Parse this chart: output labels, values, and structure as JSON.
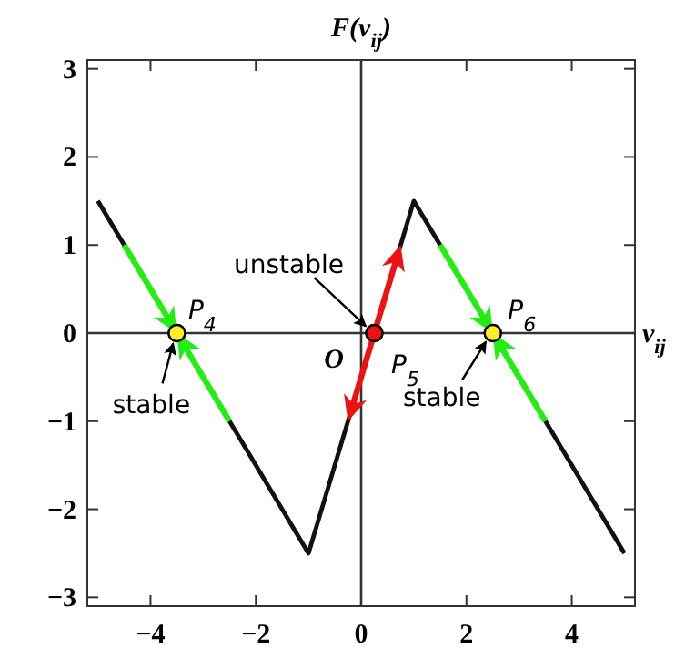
{
  "chart_data": {
    "type": "line",
    "title": "F(v$_{ij}$)",
    "xlim": [
      -5.2,
      5.2
    ],
    "ylim": [
      -3.1,
      3.1
    ],
    "xticks": [
      -4,
      -2,
      0,
      2,
      4
    ],
    "yticks": [
      -3,
      -2,
      -1,
      0,
      1,
      2,
      3
    ],
    "grid": false,
    "ref_lines": [
      {
        "axis": "x",
        "value": 0,
        "color": "#333333"
      },
      {
        "axis": "y",
        "value": 0,
        "color": "#333333",
        "label": "v$_{ij}$"
      }
    ],
    "series": [
      {
        "color": "#111111",
        "x": [
          -5,
          -1,
          1,
          5
        ],
        "values": [
          1.5,
          -2.5,
          1.5,
          -2.5
        ]
      },
      {
        "type": "scatter",
        "color": "#ffee22",
        "marker": "circle",
        "x": [
          -3.5,
          2.5
        ],
        "values": [
          0,
          0
        ]
      },
      {
        "type": "scatter",
        "color": "#ee1111",
        "marker": "circle",
        "x": [
          0.25
        ],
        "values": [
          0
        ]
      }
    ],
    "annotations": [
      {
        "text": "P$_{4}$",
        "x": -3.5,
        "y": 0
      },
      {
        "text": "P$_{5}$",
        "x": 0.25,
        "y": 0
      },
      {
        "text": "P$_{6}$",
        "x": 2.5,
        "y": 0
      },
      {
        "text": "O",
        "x": 0,
        "y": 0
      },
      {
        "text": "unstable",
        "x": 0.25,
        "y": 0
      },
      {
        "text": "stable",
        "x": -3.5,
        "y": 0
      },
      {
        "text": "stable",
        "x": 2.5,
        "y": 0
      }
    ]
  }
}
